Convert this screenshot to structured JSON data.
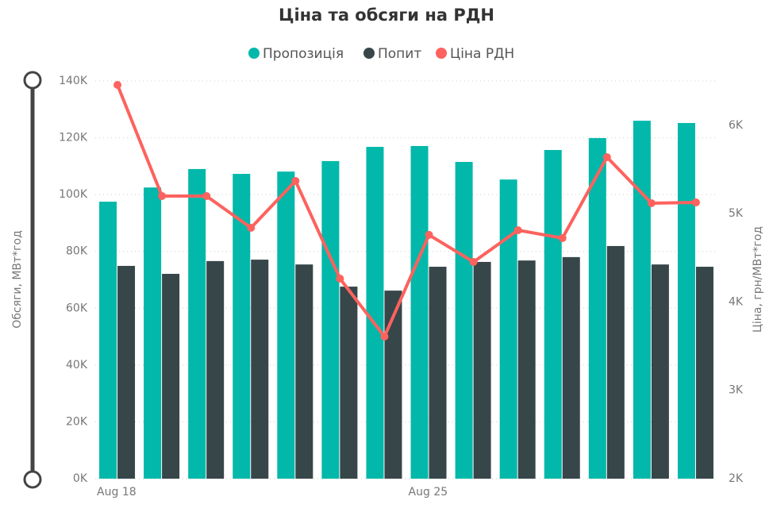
{
  "chart_data": {
    "type": "bar_line",
    "title": "Ціна та обсяги на РДН",
    "categories": [
      "Aug 18",
      null,
      null,
      null,
      null,
      null,
      null,
      "Aug 25",
      null,
      null,
      null,
      null,
      null,
      null
    ],
    "series": [
      {
        "name": "Пропозиція",
        "color": "#01b8aa",
        "values": [
          97500,
          102500,
          109000,
          107300,
          108100,
          111800,
          116800,
          117100,
          111500,
          105300,
          115700,
          119900,
          126000,
          125200
        ]
      },
      {
        "name": "Попит",
        "color": "#374649",
        "values": [
          74900,
          72100,
          76600,
          77100,
          75400,
          67600,
          66200,
          74600,
          76300,
          76800,
          78000,
          81900,
          75400,
          74600
        ]
      },
      {
        "name": "Ціна РДН",
        "color": "#fd625e",
        "axis": "y2",
        "values": [
          6458,
          5200,
          5200,
          4840,
          5371,
          4265,
          3609,
          4760,
          4454,
          4813,
          4724,
          5640,
          5119,
          5128
        ]
      }
    ],
    "ylabel": "Обсяги, МВт*год",
    "y2label": "Ціна, грн/МВт*год",
    "ylim": [
      0,
      140000
    ],
    "yticks": [
      {
        "value": 0,
        "label": "0K"
      },
      {
        "value": 20000,
        "label": "20K"
      },
      {
        "value": 40000,
        "label": "40K"
      },
      {
        "value": 60000,
        "label": "60K"
      },
      {
        "value": 80000,
        "label": "80K"
      },
      {
        "value": 100000,
        "label": "100K"
      },
      {
        "value": 120000,
        "label": "120K"
      },
      {
        "value": 140000,
        "label": "140K"
      }
    ],
    "y2lim": [
      2000,
      6503
    ],
    "y2ticks": [
      {
        "value": 2000,
        "label": "2K"
      },
      {
        "value": 3000,
        "label": "3K"
      },
      {
        "value": 4000,
        "label": "4K"
      },
      {
        "value": 5000,
        "label": "5K"
      },
      {
        "value": 6000,
        "label": "6K"
      }
    ],
    "grid": true
  }
}
